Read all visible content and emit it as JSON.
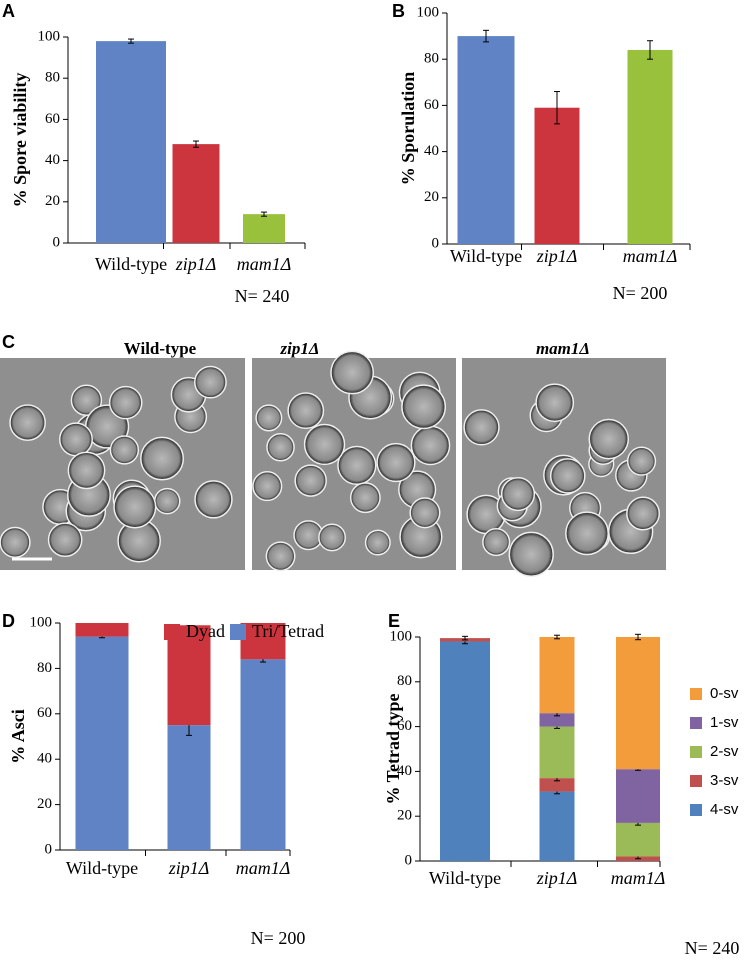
{
  "chart_data": [
    {
      "type": "bar",
      "panel": "A",
      "ylabel": "% Spore viability",
      "categories": [
        "Wild-type",
        "zip1Δ",
        "mam1Δ"
      ],
      "values": [
        98,
        48,
        14
      ],
      "errors": [
        1,
        1.5,
        1
      ],
      "colors": [
        "#5f83c5",
        "#cc353d",
        "#99c13c"
      ],
      "ylim": [
        0,
        100
      ],
      "yticks": [
        0,
        20,
        40,
        60,
        80,
        100
      ],
      "note": "N= 240"
    },
    {
      "type": "bar",
      "panel": "B",
      "ylabel": "% Sporulation",
      "categories": [
        "Wild-type",
        "zip1Δ",
        "mam1Δ"
      ],
      "values": [
        90,
        59,
        84
      ],
      "errors": [
        2.5,
        7,
        4
      ],
      "colors": [
        "#5f83c5",
        "#cc353d",
        "#99c13c"
      ],
      "ylim": [
        0,
        100
      ],
      "yticks": [
        0,
        20,
        40,
        60,
        80,
        100
      ],
      "note": "N= 200"
    },
    {
      "type": "stacked_bar",
      "panel": "D",
      "ylabel": "% Asci",
      "categories": [
        "Wild-type",
        "zip1Δ",
        "mam1Δ"
      ],
      "series": [
        {
          "name": "Tri/Tetrad",
          "color": "#5f83c5",
          "values": [
            94,
            55,
            84
          ],
          "errors": [
            0.5,
            4.5,
            1.2
          ]
        },
        {
          "name": "Dyad",
          "color": "#cc353d",
          "values": [
            6,
            44,
            16
          ]
        }
      ],
      "ylim": [
        0,
        100
      ],
      "yticks": [
        0,
        20,
        40,
        60,
        80,
        100
      ],
      "note": "N= 200"
    },
    {
      "type": "stacked_bar",
      "panel": "E",
      "ylabel": "% Tetrad type",
      "categories": [
        "Wild-type",
        "zip1Δ",
        "mam1Δ"
      ],
      "series": [
        {
          "name": "4-sv",
          "color": "#4f81bd",
          "values": [
            98,
            31,
            0
          ],
          "errors": [
            1,
            1,
            0
          ]
        },
        {
          "name": "3-sv",
          "color": "#c0504d",
          "values": [
            1.5,
            6,
            2
          ],
          "errors": [
            0.8,
            1.2,
            1
          ]
        },
        {
          "name": "2-sv",
          "color": "#9bbb59",
          "values": [
            0,
            23,
            15
          ],
          "errors": [
            0,
            0.8,
            1
          ]
        },
        {
          "name": "1-sv",
          "color": "#8064a2",
          "values": [
            0,
            6,
            24
          ],
          "errors": [
            0,
            1.2,
            0.5
          ]
        },
        {
          "name": "0-sv",
          "color": "#f39c3c",
          "values": [
            0,
            34,
            59
          ],
          "errors": [
            0,
            0.8,
            1.2
          ]
        }
      ],
      "ylim": [
        0,
        100
      ],
      "yticks": [
        0,
        20,
        40,
        60,
        80,
        100
      ],
      "note": "N= 240"
    }
  ],
  "micrographs": {
    "panel": "C",
    "titles": [
      "Wild-type",
      "zip1Δ",
      "mam1Δ"
    ]
  }
}
